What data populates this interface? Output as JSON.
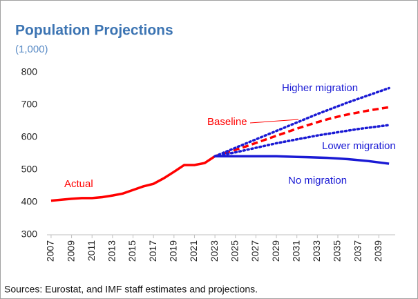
{
  "chart_data": {
    "type": "line",
    "title": "Population Projections",
    "subtitle": "(1,000)",
    "source": "Sources: Eurostat, and IMF staff estimates and projections.",
    "x": [
      2007,
      2008,
      2009,
      2010,
      2011,
      2012,
      2013,
      2014,
      2015,
      2016,
      2017,
      2018,
      2019,
      2020,
      2021,
      2022,
      2023,
      2024,
      2025,
      2026,
      2027,
      2028,
      2029,
      2030,
      2031,
      2032,
      2033,
      2034,
      2035,
      2036,
      2037,
      2038,
      2039,
      2040
    ],
    "xlim": [
      2006.6,
      2040.6
    ],
    "xticks": [
      2007,
      2009,
      2011,
      2013,
      2015,
      2017,
      2019,
      2021,
      2023,
      2025,
      2027,
      2029,
      2031,
      2033,
      2035,
      2037,
      2039
    ],
    "ylim": [
      300,
      800
    ],
    "yticks": [
      300,
      400,
      500,
      600,
      700,
      800
    ],
    "grid": false,
    "series": [
      {
        "name": "Actual",
        "color": "#ff0000",
        "style": "solid",
        "values": [
          405,
          408,
          411,
          413,
          413,
          416,
          421,
          427,
          438,
          449,
          457,
          474,
          494,
          515,
          515,
          521,
          542,
          null,
          null,
          null,
          null,
          null,
          null,
          null,
          null,
          null,
          null,
          null,
          null,
          null,
          null,
          null,
          null,
          null
        ]
      },
      {
        "name": "Baseline",
        "color": "#ff0000",
        "style": "dashed",
        "values": [
          null,
          null,
          null,
          null,
          null,
          null,
          null,
          null,
          null,
          null,
          null,
          null,
          null,
          null,
          null,
          null,
          542,
          552,
          562,
          572,
          583,
          594,
          605,
          616,
          627,
          637,
          647,
          656,
          664,
          671,
          677,
          683,
          688,
          693
        ]
      },
      {
        "name": "Higher migration",
        "color": "#1a1ad4",
        "style": "dotted",
        "values": [
          null,
          null,
          null,
          null,
          null,
          null,
          null,
          null,
          null,
          null,
          null,
          null,
          null,
          null,
          null,
          null,
          542,
          555,
          568,
          581,
          594,
          607,
          620,
          633,
          646,
          659,
          672,
          684,
          696,
          708,
          719,
          730,
          741,
          752
        ]
      },
      {
        "name": "Lower migration",
        "color": "#1a1ad4",
        "style": "dotted",
        "values": [
          null,
          null,
          null,
          null,
          null,
          null,
          null,
          null,
          null,
          null,
          null,
          null,
          null,
          null,
          null,
          null,
          542,
          548,
          554,
          561,
          568,
          575,
          582,
          588,
          594,
          600,
          606,
          611,
          616,
          621,
          626,
          630,
          634,
          638
        ]
      },
      {
        "name": "No migration",
        "color": "#1a1ad4",
        "style": "solid",
        "values": [
          null,
          null,
          null,
          null,
          null,
          null,
          null,
          null,
          null,
          null,
          null,
          null,
          null,
          null,
          null,
          null,
          542,
          542,
          542,
          542,
          542,
          542,
          542,
          541,
          540,
          539,
          538,
          537,
          535,
          533,
          530,
          527,
          523,
          519
        ]
      }
    ]
  }
}
